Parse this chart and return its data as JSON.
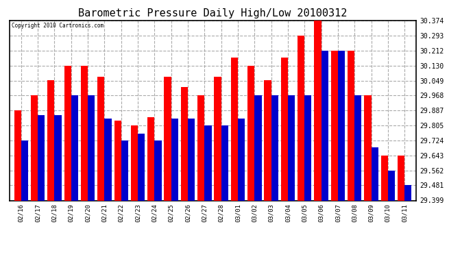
{
  "title": "Barometric Pressure Daily High/Low 20100312",
  "copyright": "Copyright 2010 Cartronics.com",
  "dates": [
    "02/16",
    "02/17",
    "02/18",
    "02/19",
    "02/20",
    "02/21",
    "02/22",
    "02/23",
    "02/24",
    "02/25",
    "02/26",
    "02/27",
    "02/28",
    "03/01",
    "03/02",
    "03/03",
    "03/04",
    "03/05",
    "03/06",
    "03/07",
    "03/08",
    "03/09",
    "03/10",
    "03/11"
  ],
  "highs": [
    29.887,
    29.968,
    30.049,
    30.13,
    30.13,
    30.068,
    29.83,
    29.805,
    29.849,
    30.068,
    30.012,
    29.968,
    30.068,
    30.175,
    30.13,
    30.049,
    30.175,
    30.293,
    30.374,
    30.212,
    30.212,
    29.968,
    29.643,
    29.643
  ],
  "lows": [
    29.724,
    29.862,
    29.862,
    29.968,
    29.968,
    29.843,
    29.724,
    29.762,
    29.724,
    29.843,
    29.843,
    29.805,
    29.805,
    29.843,
    29.968,
    29.968,
    29.968,
    29.968,
    30.212,
    30.212,
    29.968,
    29.687,
    29.562,
    29.481
  ],
  "high_color": "#ff0000",
  "low_color": "#0000cc",
  "bg_color": "#ffffff",
  "grid_color": "#aaaaaa",
  "title_fontsize": 11,
  "ymin": 29.399,
  "ymax": 30.374,
  "yticks": [
    29.399,
    29.481,
    29.562,
    29.643,
    29.724,
    29.805,
    29.887,
    29.968,
    30.049,
    30.13,
    30.212,
    30.293,
    30.374
  ]
}
